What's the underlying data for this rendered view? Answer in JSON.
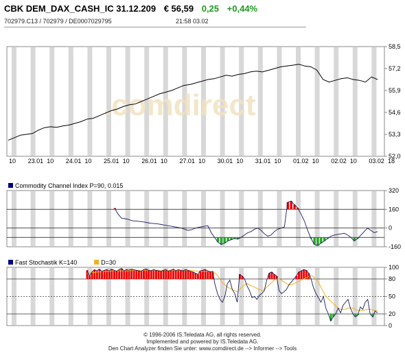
{
  "header": {
    "title": "CBK DEM_DAX_CASH_IC 31.12.209",
    "price": "€ 56,59",
    "change": "0,25",
    "change_pct": "+0,44%",
    "ids": "702979.C13  /  702979  /  DE0007029795",
    "time": "21:58   03.02"
  },
  "colors": {
    "grid_band": "#d8d8d8",
    "line": "#000000",
    "cci_line": "#1a1a5e",
    "overbought_fill": "#ee0000",
    "oversold_fill": "#22aa22",
    "d_line": "#f0b020",
    "legend_main": "#000080",
    "legend_d": "#f0b020"
  },
  "chart_data": [
    {
      "type": "line",
      "name": "price",
      "x_ticks": [
        "10",
        "23.01",
        "10",
        "24.01",
        "10",
        "25.01",
        "10",
        "26.01",
        "10",
        "27.01",
        "10",
        "30.01",
        "10",
        "31.01",
        "10",
        "01.02",
        "10",
        "02.02",
        "10",
        "03.02",
        "18"
      ],
      "y_ticks": [
        "58,5",
        "57,2",
        "55,9",
        "54,6",
        "53,3",
        "52,0"
      ],
      "ylim": [
        52.0,
        58.5
      ],
      "watermark": ".comdirect",
      "values": [
        52.95,
        53.1,
        53.25,
        53.3,
        53.35,
        53.55,
        53.7,
        53.75,
        53.72,
        53.8,
        53.85,
        53.95,
        54.05,
        54.2,
        54.25,
        54.4,
        54.55,
        54.7,
        54.8,
        54.95,
        55.05,
        55.1,
        55.25,
        55.4,
        55.55,
        55.7,
        55.8,
        55.9,
        56.05,
        56.2,
        56.25,
        56.35,
        56.45,
        56.55,
        56.6,
        56.7,
        56.8,
        56.75,
        56.85,
        56.9,
        57.0,
        57.05,
        57.0,
        57.1,
        57.2,
        57.3,
        57.35,
        57.4,
        57.45,
        57.35,
        57.3,
        57.1,
        56.55,
        56.4,
        56.5,
        56.6,
        56.65,
        56.55,
        56.5,
        56.4,
        56.7,
        56.55
      ]
    },
    {
      "type": "line",
      "name": "cci",
      "legend": "Commodity Channel Index P=90, 0.015",
      "y_ticks": [
        "320",
        "160",
        "0",
        "-160"
      ],
      "ylim": [
        -160,
        320
      ],
      "hlines": [
        160,
        0,
        -80
      ],
      "values": [
        null,
        null,
        null,
        null,
        null,
        null,
        null,
        null,
        null,
        null,
        null,
        null,
        null,
        null,
        null,
        null,
        null,
        null,
        null,
        null,
        null,
        null,
        null,
        null,
        null,
        null,
        null,
        null,
        null,
        null,
        null,
        null,
        170,
        120,
        85,
        80,
        75,
        65,
        60,
        58,
        55,
        50,
        45,
        40,
        38,
        35,
        30,
        25,
        20,
        15,
        10,
        5,
        0,
        -10,
        -20,
        -15,
        -5,
        5,
        10,
        15,
        20,
        -40,
        -80,
        -120,
        -140,
        -130,
        -110,
        -100,
        -90,
        -95,
        -80,
        -60,
        -40,
        -30,
        -10,
        0,
        -20,
        -50,
        -70,
        -60,
        -30,
        -10,
        0,
        10,
        220,
        230,
        200,
        170,
        120,
        60,
        -20,
        -90,
        -140,
        -150,
        -130,
        -110,
        -90,
        -70,
        -60,
        -55,
        -50,
        -45,
        -60,
        -80,
        -110,
        -90,
        -60,
        -30,
        0,
        -20,
        -40,
        -30
      ]
    },
    {
      "type": "line",
      "name": "stochastic",
      "legend": "Fast Stochastik K=140",
      "legend_d": "D=30",
      "y_ticks": [
        "100",
        "80",
        "50",
        "20",
        "0"
      ],
      "ylim": [
        0,
        100
      ],
      "hlines": [
        80,
        50,
        20
      ],
      "k_values": [
        null,
        null,
        null,
        null,
        null,
        null,
        null,
        null,
        null,
        null,
        null,
        null,
        null,
        null,
        null,
        null,
        null,
        null,
        null,
        null,
        null,
        null,
        null,
        null,
        null,
        null,
        null,
        null,
        null,
        null,
        null,
        null,
        95,
        85,
        92,
        96,
        94,
        97,
        93,
        95,
        96,
        94,
        97,
        95,
        93,
        96,
        98,
        94,
        96,
        95,
        97,
        96,
        95,
        94,
        93,
        96,
        97,
        95,
        94,
        96,
        95,
        94,
        93,
        95,
        96,
        93,
        95,
        97,
        94,
        96,
        95,
        94,
        96,
        95,
        93,
        92,
        90,
        88,
        94,
        95,
        96,
        94,
        92,
        93,
        70,
        55,
        45,
        40,
        50,
        72,
        78,
        62,
        55,
        40,
        88,
        85,
        80,
        68,
        60,
        48,
        50,
        45,
        52,
        55,
        60,
        78,
        90,
        92,
        88,
        85,
        60,
        55,
        58,
        62,
        70,
        75,
        80,
        85,
        92,
        94,
        96,
        95,
        90,
        80,
        65,
        55,
        48,
        40,
        50,
        30,
        20,
        8,
        15,
        20,
        30,
        22,
        35,
        40,
        45,
        30,
        20,
        15,
        18,
        32,
        28,
        40,
        45,
        20,
        15,
        25,
        22
      ],
      "d_values": [
        null,
        null,
        null,
        null,
        null,
        null,
        null,
        null,
        null,
        null,
        null,
        null,
        null,
        null,
        null,
        null,
        null,
        null,
        null,
        null,
        null,
        null,
        null,
        null,
        null,
        null,
        null,
        null,
        null,
        null,
        null,
        null,
        90,
        90,
        91,
        91,
        92,
        92,
        93,
        93,
        93,
        93,
        94,
        94,
        94,
        94,
        94,
        94,
        94,
        94,
        95,
        95,
        95,
        95,
        95,
        95,
        95,
        95,
        95,
        95,
        95,
        95,
        95,
        95,
        95,
        95,
        95,
        95,
        95,
        95,
        95,
        95,
        95,
        95,
        95,
        94,
        94,
        93,
        93,
        93,
        93,
        93,
        93,
        92,
        90,
        86,
        80,
        74,
        70,
        66,
        64,
        62,
        60,
        58,
        62,
        66,
        70,
        72,
        70,
        68,
        66,
        64,
        62,
        60,
        62,
        66,
        70,
        74,
        78,
        80,
        80,
        78,
        75,
        72,
        70,
        70,
        72,
        74,
        76,
        78,
        80,
        82,
        84,
        86,
        84,
        80,
        74,
        66,
        58,
        50,
        46,
        42,
        38,
        34,
        30,
        28,
        28,
        28,
        30,
        30,
        30,
        28,
        26,
        26,
        26,
        27,
        28,
        28,
        27,
        26,
        26
      ]
    }
  ],
  "footer": {
    "line1": "© 1996-2006 IS.Teledata AG, all rights reserved.",
    "line2": "Implemented and powered by IS.Teledata AG.",
    "line3": "Den Chart Analyzer finden Sie unter: www.comdirect.de --> Informer --> Tools"
  }
}
